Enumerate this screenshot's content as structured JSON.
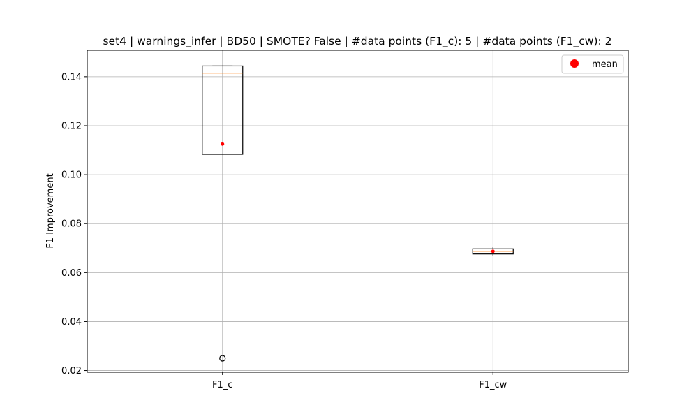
{
  "chart_data": {
    "type": "box",
    "title": "set4 | warnings_infer | BD50 | SMOTE? False | #data points (F1_c): 5 | #data points (F1_cw): 2",
    "xlabel": "",
    "ylabel": "F1 Improvement",
    "ylim": [
      0.0193,
      0.1508
    ],
    "yticks": [
      0.02,
      0.04,
      0.06,
      0.08,
      0.1,
      0.12,
      0.14
    ],
    "ytick_labels": [
      "0.02",
      "0.04",
      "0.06",
      "0.08",
      "0.10",
      "0.12",
      "0.14"
    ],
    "grid": true,
    "legend": {
      "position": "top-right",
      "entries": [
        {
          "label": "mean",
          "color": "#ff0000",
          "marker": "circle"
        }
      ]
    },
    "categories": [
      "F1_c",
      "F1_cw"
    ],
    "boxes": [
      {
        "name": "F1_c",
        "whisker_low": 0.1083,
        "q1": 0.1083,
        "median": 0.1415,
        "q3": 0.1444,
        "whisker_high": 0.1444,
        "mean": 0.1125,
        "outliers": [
          0.025
        ]
      },
      {
        "name": "F1_cw",
        "whisker_low": 0.0668,
        "q1": 0.0676,
        "median": 0.0687,
        "q3": 0.0697,
        "whisker_high": 0.0705,
        "mean": 0.0687,
        "outliers": []
      }
    ],
    "colors": {
      "box": "#000000",
      "median": "#ff7f0e",
      "mean": "#ff0000",
      "grid": "#b0b0b0"
    }
  }
}
